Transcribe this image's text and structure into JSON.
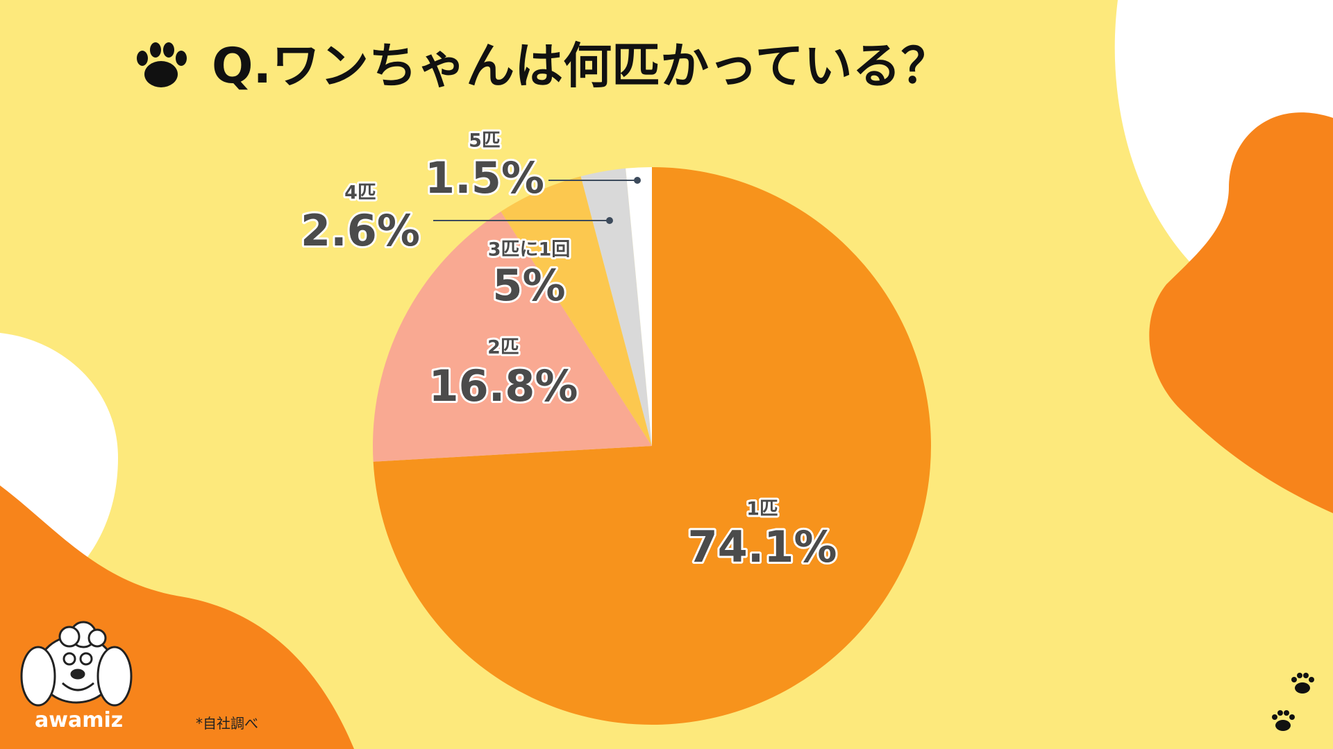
{
  "chart_data": {
    "type": "pie",
    "title": "Q.ワンちゃんは何匹かっている？",
    "categories": [
      "1匹",
      "2匹",
      "3匹に1回",
      "4匹",
      "5匹"
    ],
    "values": [
      74.1,
      16.8,
      5,
      2.6,
      1.5
    ],
    "value_labels": [
      "74.1%",
      "16.8%",
      "5%",
      "2.6%",
      "1.5%"
    ],
    "colors": [
      "#f7931c",
      "#f9a992",
      "#fcc84f",
      "#d9d9d9",
      "#ffffff"
    ],
    "footnote": "*自社調べ",
    "brand": "awamiz"
  }
}
